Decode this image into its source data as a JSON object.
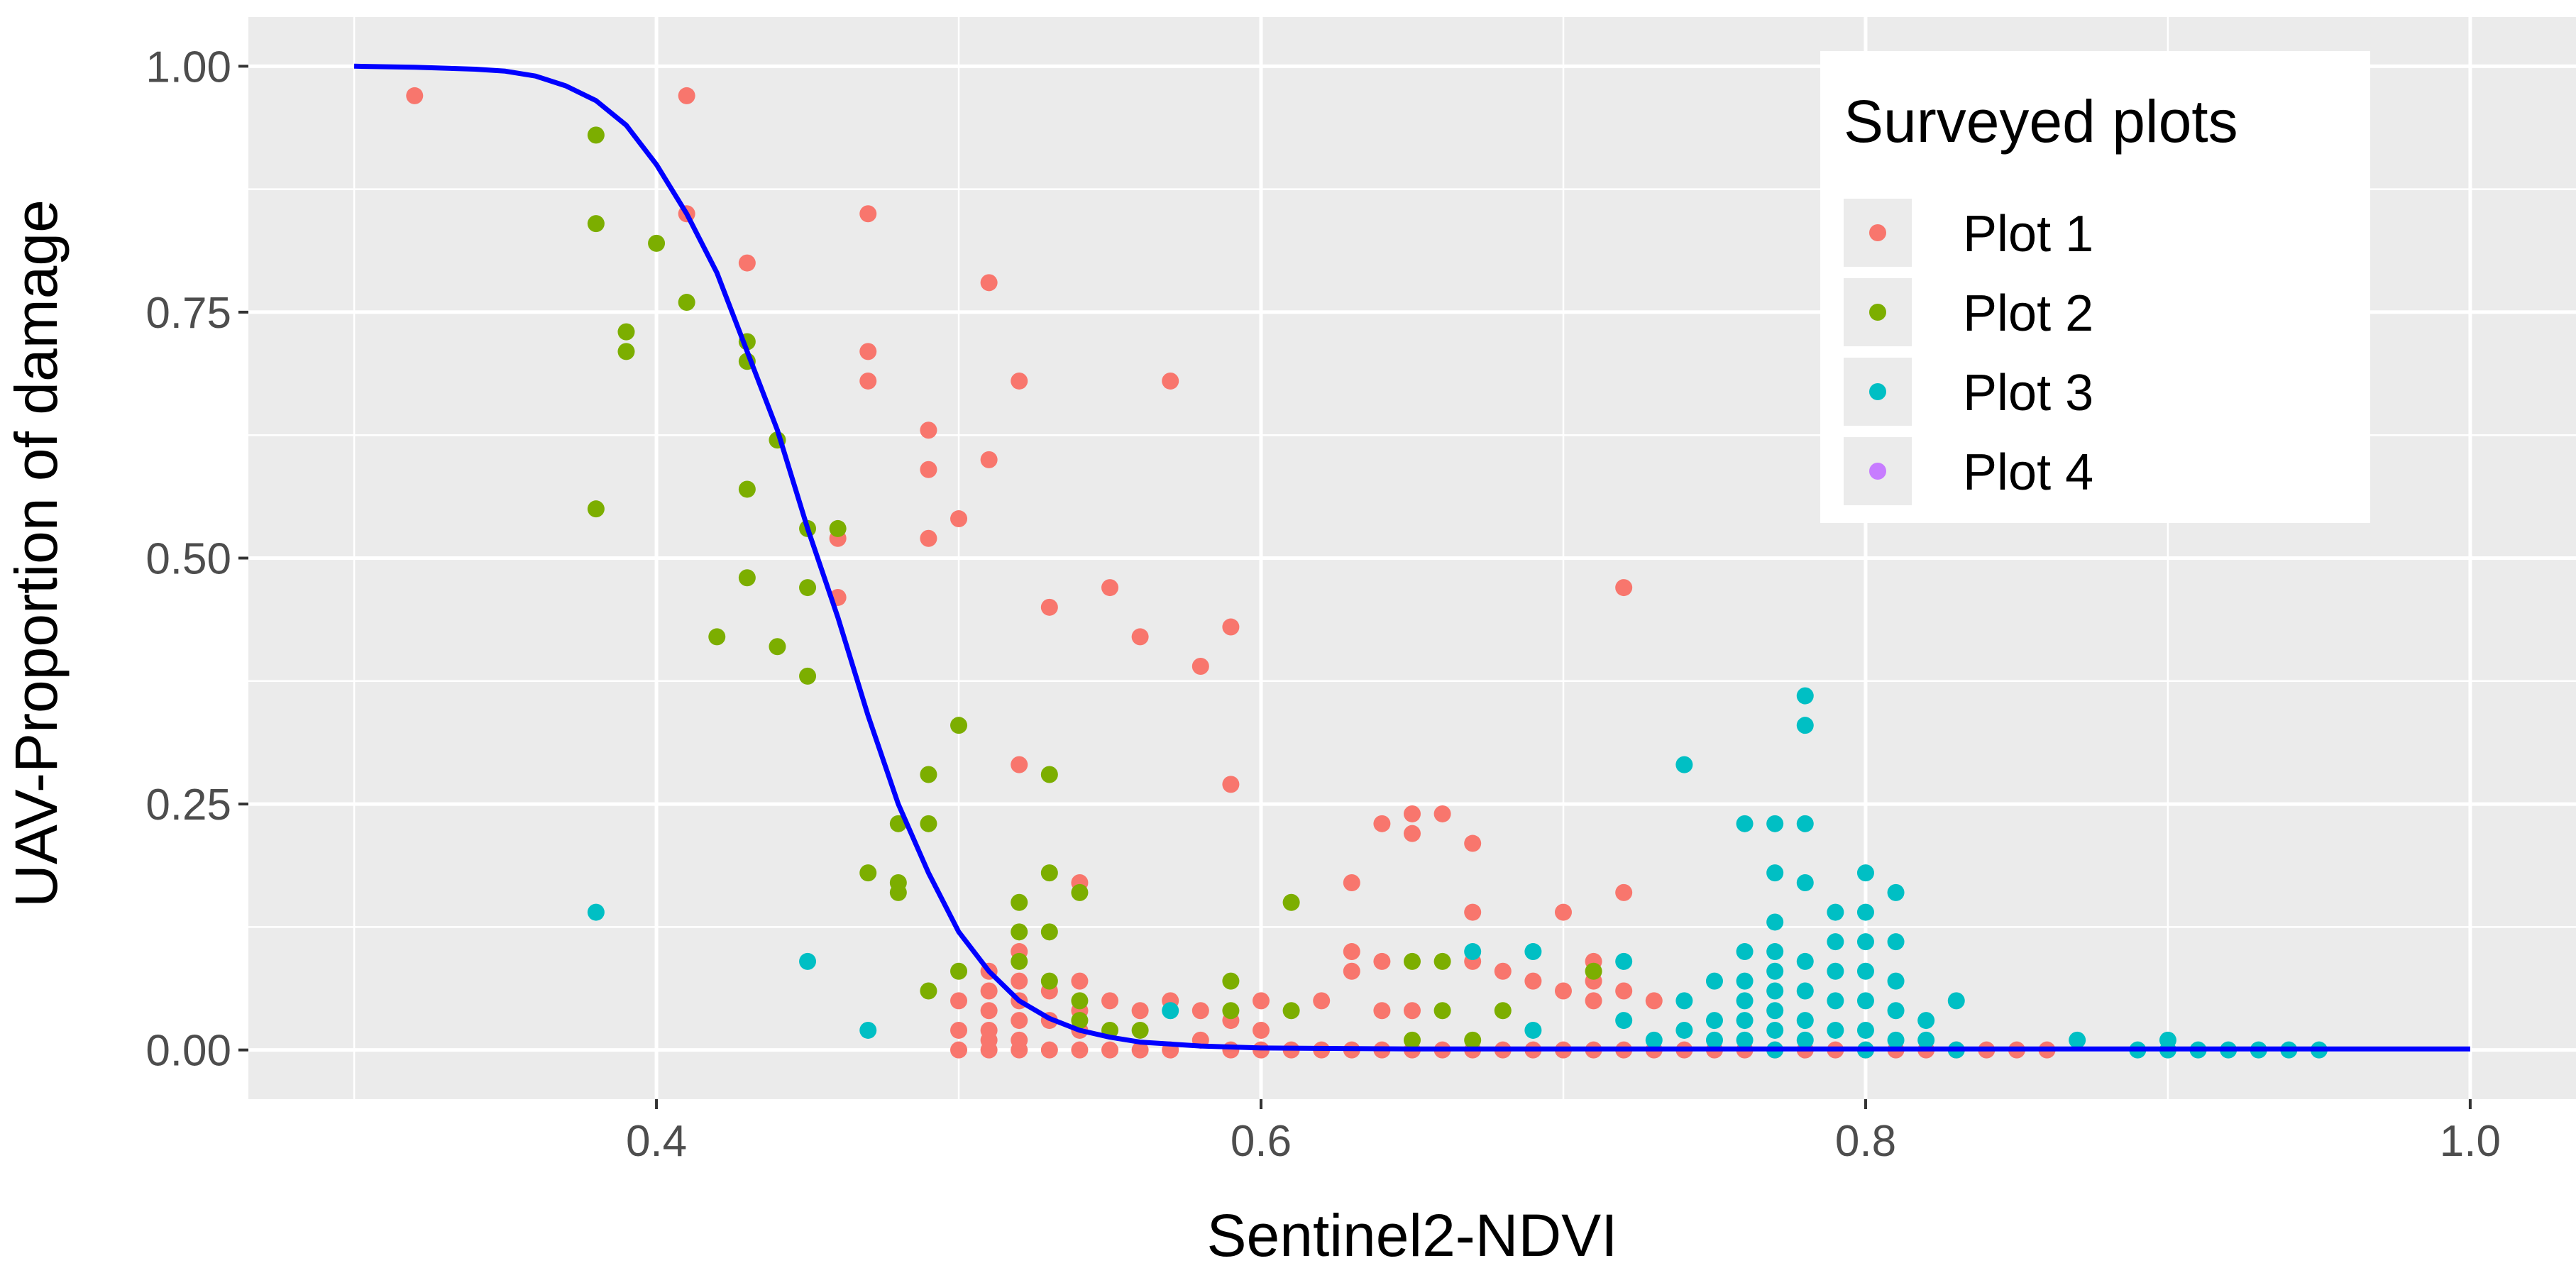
{
  "chart_data": {
    "type": "scatter",
    "title": "",
    "xlabel": "Sentinel2-NDVI",
    "ylabel": "UAV-Proportion of damage",
    "xlim": [
      0.265,
      1.035
    ],
    "ylim": [
      -0.05,
      1.05
    ],
    "xticks": [
      0.4,
      0.6,
      0.8,
      1.0
    ],
    "xtick_labels": [
      "0.4",
      "0.6",
      "0.8",
      "1.0"
    ],
    "yticks": [
      0.0,
      0.25,
      0.5,
      0.75,
      1.0
    ],
    "ytick_labels": [
      "0.00",
      "0.25",
      "0.50",
      "0.75",
      "1.00"
    ],
    "grid": true,
    "legend": {
      "title": "Surveyed plots",
      "position": "top-right",
      "entries": [
        {
          "name": "Plot 1",
          "color": "#F8766D"
        },
        {
          "name": "Plot 2",
          "color": "#7CAE00"
        },
        {
          "name": "Plot 3",
          "color": "#00BFC4"
        },
        {
          "name": "Plot 4",
          "color": "#C77CFF"
        }
      ]
    },
    "series": [
      {
        "name": "Plot 1",
        "color": "#F8766D",
        "points": [
          [
            0.32,
            0.97
          ],
          [
            0.41,
            0.97
          ],
          [
            0.41,
            0.85
          ],
          [
            0.43,
            0.8
          ],
          [
            0.46,
            0.52
          ],
          [
            0.46,
            0.46
          ],
          [
            0.47,
            0.85
          ],
          [
            0.47,
            0.71
          ],
          [
            0.47,
            0.68
          ],
          [
            0.49,
            0.63
          ],
          [
            0.49,
            0.59
          ],
          [
            0.49,
            0.52
          ],
          [
            0.5,
            0.54
          ],
          [
            0.51,
            0.78
          ],
          [
            0.51,
            0.6
          ],
          [
            0.52,
            0.68
          ],
          [
            0.52,
            0.29
          ],
          [
            0.53,
            0.45
          ],
          [
            0.54,
            0.17
          ],
          [
            0.55,
            0.47
          ],
          [
            0.56,
            0.42
          ],
          [
            0.57,
            0.68
          ],
          [
            0.58,
            0.39
          ],
          [
            0.59,
            0.43
          ],
          [
            0.59,
            0.27
          ],
          [
            0.63,
            0.17
          ],
          [
            0.64,
            0.23
          ],
          [
            0.65,
            0.24
          ],
          [
            0.65,
            0.22
          ],
          [
            0.66,
            0.24
          ],
          [
            0.67,
            0.21
          ],
          [
            0.67,
            0.14
          ],
          [
            0.7,
            0.14
          ],
          [
            0.72,
            0.47
          ],
          [
            0.72,
            0.16
          ],
          [
            0.5,
            0.05
          ],
          [
            0.5,
            0.02
          ],
          [
            0.5,
            0.0
          ],
          [
            0.51,
            0.08
          ],
          [
            0.51,
            0.06
          ],
          [
            0.51,
            0.04
          ],
          [
            0.51,
            0.02
          ],
          [
            0.51,
            0.01
          ],
          [
            0.51,
            0.0
          ],
          [
            0.52,
            0.1
          ],
          [
            0.52,
            0.07
          ],
          [
            0.52,
            0.05
          ],
          [
            0.52,
            0.03
          ],
          [
            0.52,
            0.01
          ],
          [
            0.52,
            0.0
          ],
          [
            0.53,
            0.06
          ],
          [
            0.53,
            0.03
          ],
          [
            0.53,
            0.0
          ],
          [
            0.54,
            0.07
          ],
          [
            0.54,
            0.04
          ],
          [
            0.54,
            0.02
          ],
          [
            0.54,
            0.0
          ],
          [
            0.55,
            0.05
          ],
          [
            0.55,
            0.0
          ],
          [
            0.56,
            0.04
          ],
          [
            0.56,
            0.0
          ],
          [
            0.57,
            0.05
          ],
          [
            0.57,
            0.0
          ],
          [
            0.58,
            0.04
          ],
          [
            0.58,
            0.01
          ],
          [
            0.59,
            0.03
          ],
          [
            0.59,
            0.0
          ],
          [
            0.6,
            0.05
          ],
          [
            0.6,
            0.02
          ],
          [
            0.6,
            0.0
          ],
          [
            0.61,
            0.0
          ],
          [
            0.62,
            0.05
          ],
          [
            0.62,
            0.0
          ],
          [
            0.63,
            0.1
          ],
          [
            0.63,
            0.08
          ],
          [
            0.63,
            0.0
          ],
          [
            0.64,
            0.09
          ],
          [
            0.64,
            0.04
          ],
          [
            0.64,
            0.0
          ],
          [
            0.65,
            0.04
          ],
          [
            0.65,
            0.0
          ],
          [
            0.66,
            0.0
          ],
          [
            0.67,
            0.09
          ],
          [
            0.67,
            0.0
          ],
          [
            0.68,
            0.08
          ],
          [
            0.68,
            0.0
          ],
          [
            0.69,
            0.07
          ],
          [
            0.69,
            0.0
          ],
          [
            0.7,
            0.06
          ],
          [
            0.7,
            0.0
          ],
          [
            0.71,
            0.09
          ],
          [
            0.71,
            0.07
          ],
          [
            0.71,
            0.05
          ],
          [
            0.71,
            0.0
          ],
          [
            0.72,
            0.06
          ],
          [
            0.72,
            0.0
          ],
          [
            0.73,
            0.05
          ],
          [
            0.73,
            0.0
          ],
          [
            0.74,
            0.0
          ],
          [
            0.75,
            0.0
          ],
          [
            0.76,
            0.0
          ],
          [
            0.77,
            0.0
          ],
          [
            0.78,
            0.0
          ],
          [
            0.79,
            0.0
          ],
          [
            0.8,
            0.0
          ],
          [
            0.81,
            0.0
          ],
          [
            0.82,
            0.0
          ],
          [
            0.83,
            0.0
          ],
          [
            0.84,
            0.0
          ],
          [
            0.85,
            0.0
          ],
          [
            0.86,
            0.0
          ]
        ]
      },
      {
        "name": "Plot 2",
        "color": "#7CAE00",
        "points": [
          [
            0.38,
            0.93
          ],
          [
            0.38,
            0.84
          ],
          [
            0.38,
            0.55
          ],
          [
            0.39,
            0.73
          ],
          [
            0.39,
            0.71
          ],
          [
            0.4,
            0.82
          ],
          [
            0.41,
            0.76
          ],
          [
            0.42,
            0.42
          ],
          [
            0.43,
            0.72
          ],
          [
            0.43,
            0.7
          ],
          [
            0.43,
            0.57
          ],
          [
            0.43,
            0.48
          ],
          [
            0.44,
            0.62
          ],
          [
            0.44,
            0.41
          ],
          [
            0.45,
            0.53
          ],
          [
            0.45,
            0.47
          ],
          [
            0.45,
            0.38
          ],
          [
            0.46,
            0.53
          ],
          [
            0.47,
            0.18
          ],
          [
            0.48,
            0.23
          ],
          [
            0.48,
            0.17
          ],
          [
            0.48,
            0.16
          ],
          [
            0.49,
            0.28
          ],
          [
            0.49,
            0.23
          ],
          [
            0.5,
            0.33
          ],
          [
            0.49,
            0.06
          ],
          [
            0.5,
            0.08
          ],
          [
            0.52,
            0.15
          ],
          [
            0.52,
            0.12
          ],
          [
            0.52,
            0.09
          ],
          [
            0.53,
            0.28
          ],
          [
            0.53,
            0.18
          ],
          [
            0.53,
            0.12
          ],
          [
            0.53,
            0.07
          ],
          [
            0.54,
            0.16
          ],
          [
            0.54,
            0.05
          ],
          [
            0.54,
            0.03
          ],
          [
            0.55,
            0.02
          ],
          [
            0.56,
            0.02
          ],
          [
            0.59,
            0.07
          ],
          [
            0.59,
            0.04
          ],
          [
            0.61,
            0.15
          ],
          [
            0.61,
            0.04
          ],
          [
            0.65,
            0.09
          ],
          [
            0.65,
            0.01
          ],
          [
            0.66,
            0.09
          ],
          [
            0.66,
            0.04
          ],
          [
            0.67,
            0.01
          ],
          [
            0.68,
            0.04
          ],
          [
            0.71,
            0.08
          ]
        ]
      },
      {
        "name": "Plot 3",
        "color": "#00BFC4",
        "points": [
          [
            0.38,
            0.14
          ],
          [
            0.45,
            0.09
          ],
          [
            0.47,
            0.02
          ],
          [
            0.57,
            0.04
          ],
          [
            0.67,
            0.1
          ],
          [
            0.69,
            0.1
          ],
          [
            0.69,
            0.02
          ],
          [
            0.72,
            0.09
          ],
          [
            0.72,
            0.03
          ],
          [
            0.73,
            0.01
          ],
          [
            0.74,
            0.29
          ],
          [
            0.74,
            0.05
          ],
          [
            0.74,
            0.02
          ],
          [
            0.75,
            0.07
          ],
          [
            0.75,
            0.03
          ],
          [
            0.75,
            0.01
          ],
          [
            0.76,
            0.23
          ],
          [
            0.76,
            0.1
          ],
          [
            0.76,
            0.07
          ],
          [
            0.76,
            0.05
          ],
          [
            0.76,
            0.03
          ],
          [
            0.76,
            0.01
          ],
          [
            0.77,
            0.23
          ],
          [
            0.77,
            0.18
          ],
          [
            0.77,
            0.13
          ],
          [
            0.77,
            0.1
          ],
          [
            0.77,
            0.08
          ],
          [
            0.77,
            0.06
          ],
          [
            0.77,
            0.04
          ],
          [
            0.77,
            0.02
          ],
          [
            0.77,
            0.0
          ],
          [
            0.78,
            0.36
          ],
          [
            0.78,
            0.33
          ],
          [
            0.78,
            0.23
          ],
          [
            0.78,
            0.17
          ],
          [
            0.78,
            0.09
          ],
          [
            0.78,
            0.06
          ],
          [
            0.78,
            0.03
          ],
          [
            0.78,
            0.01
          ],
          [
            0.79,
            0.14
          ],
          [
            0.79,
            0.11
          ],
          [
            0.79,
            0.08
          ],
          [
            0.79,
            0.05
          ],
          [
            0.79,
            0.02
          ],
          [
            0.8,
            0.18
          ],
          [
            0.8,
            0.14
          ],
          [
            0.8,
            0.11
          ],
          [
            0.8,
            0.08
          ],
          [
            0.8,
            0.05
          ],
          [
            0.8,
            0.02
          ],
          [
            0.8,
            0.0
          ],
          [
            0.81,
            0.16
          ],
          [
            0.81,
            0.11
          ],
          [
            0.81,
            0.07
          ],
          [
            0.81,
            0.04
          ],
          [
            0.81,
            0.01
          ],
          [
            0.82,
            0.03
          ],
          [
            0.82,
            0.01
          ],
          [
            0.83,
            0.05
          ],
          [
            0.83,
            0.0
          ],
          [
            0.87,
            0.01
          ],
          [
            0.89,
            0.0
          ],
          [
            0.9,
            0.01
          ],
          [
            0.9,
            0.0
          ],
          [
            0.91,
            0.0
          ],
          [
            0.92,
            0.0
          ],
          [
            0.93,
            0.0
          ],
          [
            0.94,
            0.0
          ],
          [
            0.95,
            0.0
          ]
        ]
      },
      {
        "name": "Plot 4",
        "color": "#C77CFF",
        "points": []
      }
    ],
    "fit_line": {
      "name": "fitted curve",
      "color": "#0000FF",
      "x": [
        0.3,
        0.32,
        0.34,
        0.35,
        0.36,
        0.37,
        0.38,
        0.39,
        0.4,
        0.41,
        0.42,
        0.43,
        0.44,
        0.45,
        0.46,
        0.47,
        0.48,
        0.49,
        0.5,
        0.51,
        0.52,
        0.53,
        0.54,
        0.55,
        0.56,
        0.58,
        0.6,
        0.65,
        0.7,
        0.8,
        0.9,
        1.0
      ],
      "y": [
        1.0,
        0.999,
        0.997,
        0.995,
        0.99,
        0.98,
        0.965,
        0.94,
        0.9,
        0.85,
        0.79,
        0.71,
        0.63,
        0.53,
        0.44,
        0.34,
        0.25,
        0.18,
        0.12,
        0.08,
        0.05,
        0.032,
        0.02,
        0.013,
        0.008,
        0.004,
        0.002,
        0.001,
        0.001,
        0.001,
        0.001,
        0.001
      ]
    }
  }
}
